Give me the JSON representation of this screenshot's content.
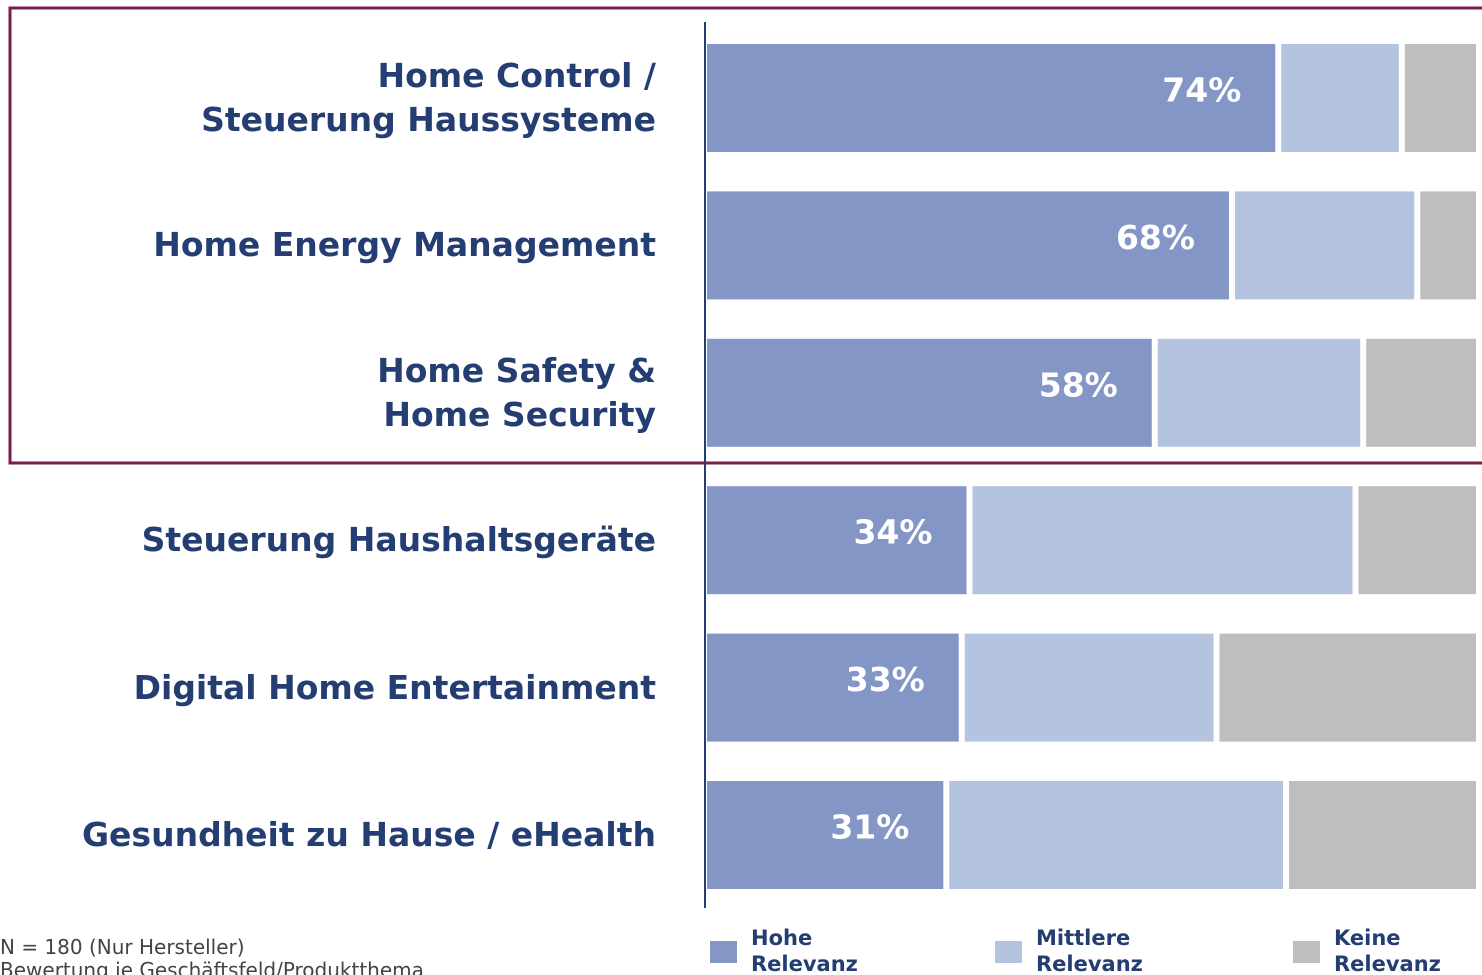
{
  "chart_data": {
    "type": "stacked-bar-horizontal",
    "categories": [
      "Home Control /\nSteuerung Haussysteme",
      "Home Energy Management",
      "Home Safety &\nHome Security",
      "Steuerung Haushaltsgeräte",
      "Digital Home Entertainment",
      "Gesundheit zu Hause / eHealth"
    ],
    "series": [
      {
        "name": "Hohe\nRelevanz",
        "color": "#8396c5",
        "values": [
          74,
          68,
          58,
          34,
          33,
          31
        ],
        "value_labels": [
          "74%",
          "68%",
          "58%",
          "34%",
          "33%",
          "31%"
        ]
      },
      {
        "name": "Mittlere\nRelevanz",
        "color": "#b4c3e0",
        "values": [
          16,
          24,
          27,
          50,
          33,
          44
        ]
      },
      {
        "name": "Keine\nRelevanz",
        "color": "#bebebe",
        "values": [
          10,
          8,
          15,
          16,
          34,
          25
        ]
      }
    ],
    "xlim": [
      0,
      100
    ],
    "footnote": [
      "N = 180  (Nur Hersteller)",
      "Bewertung je Geschäftsfeld/Produktthema"
    ]
  }
}
